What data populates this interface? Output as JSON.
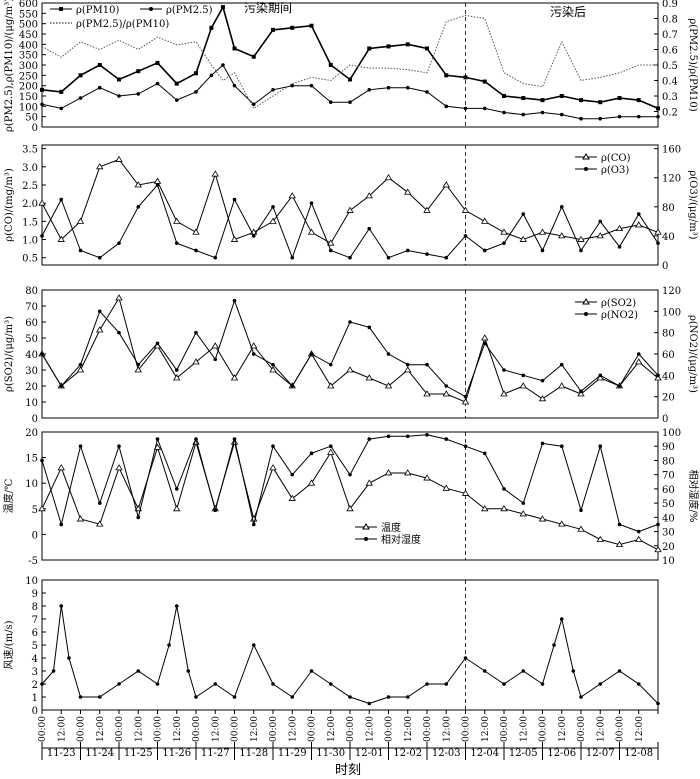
{
  "figure": {
    "x_axis": {
      "label": "时刻",
      "tick_labels": [
        "00:00",
        "12:00"
      ],
      "dates": [
        "11-23",
        "11-24",
        "11-25",
        "11-26",
        "11-27",
        "11-28",
        "11-29",
        "11-30",
        "12-01",
        "12-02",
        "12-03",
        "12-04",
        "12-05",
        "12-06",
        "12-07",
        "12-08"
      ]
    },
    "period_labels": {
      "during": "污染期间",
      "after": "污染后"
    }
  },
  "chart_data": [
    {
      "type": "line",
      "panel": 1,
      "ylabel": "ρ(PM2.5),ρ(PM10)/(μg/m³)",
      "y2label": "ρ(PM2.5)/ρ(PM10)",
      "ylim": [
        0,
        600
      ],
      "yticks": [
        0,
        50,
        100,
        150,
        200,
        250,
        300,
        350,
        400,
        450,
        500,
        550,
        600
      ],
      "y2lim": [
        0.1,
        0.9
      ],
      "y2ticks": [
        0.2,
        0.3,
        0.4,
        0.5,
        0.6,
        0.7,
        0.8,
        0.9
      ],
      "legend": [
        "ρ(PM10)",
        "ρ(PM2.5)",
        "ρ(PM2.5)/ρ(PM10)"
      ],
      "grid": false,
      "series": [
        {
          "name": "ρ(PM10)",
          "axis": "left",
          "style": "square",
          "x": [
            0,
            0.5,
            1,
            1.5,
            2,
            2.5,
            3,
            3.5,
            4,
            4.4,
            4.7,
            5,
            5.5,
            6,
            6.5,
            7,
            7.5,
            8,
            8.5,
            9,
            9.5,
            10,
            10.5,
            11,
            11.5,
            12,
            12.5,
            13,
            13.5,
            14,
            14.5,
            15,
            15.5,
            16
          ],
          "y": [
            180,
            170,
            250,
            300,
            230,
            270,
            310,
            210,
            260,
            480,
            580,
            380,
            340,
            470,
            480,
            490,
            300,
            230,
            380,
            390,
            400,
            380,
            250,
            240,
            220,
            150,
            140,
            130,
            150,
            130,
            120,
            140,
            130,
            90
          ]
        },
        {
          "name": "ρ(PM2.5)",
          "axis": "left",
          "style": "dot",
          "x": [
            0,
            0.5,
            1,
            1.5,
            2,
            2.5,
            3,
            3.5,
            4,
            4.4,
            4.7,
            5,
            5.5,
            6,
            6.5,
            7,
            7.5,
            8,
            8.5,
            9,
            9.5,
            10,
            10.5,
            11,
            11.5,
            12,
            12.5,
            13,
            13.5,
            14,
            14.5,
            15,
            15.5,
            16
          ],
          "y": [
            110,
            90,
            140,
            190,
            150,
            160,
            210,
            130,
            170,
            250,
            300,
            200,
            110,
            180,
            200,
            200,
            120,
            120,
            180,
            190,
            190,
            170,
            100,
            90,
            90,
            70,
            60,
            70,
            60,
            40,
            40,
            50,
            50,
            50
          ]
        },
        {
          "name": "ρ(PM2.5)/ρ(PM10)",
          "axis": "right",
          "style": "dotted",
          "x": [
            0,
            0.5,
            1,
            1.5,
            2,
            2.5,
            3,
            3.5,
            4,
            4.4,
            4.7,
            5,
            5.5,
            6,
            6.5,
            7,
            7.5,
            8,
            8.5,
            9,
            9.5,
            10,
            10.5,
            11,
            11.5,
            12,
            12.5,
            13,
            13.5,
            14,
            14.5,
            15,
            15.5,
            16
          ],
          "y": [
            0.62,
            0.55,
            0.65,
            0.6,
            0.66,
            0.6,
            0.68,
            0.63,
            0.65,
            0.5,
            0.4,
            0.45,
            0.22,
            0.3,
            0.38,
            0.42,
            0.4,
            0.5,
            0.48,
            0.48,
            0.47,
            0.45,
            0.78,
            0.82,
            0.8,
            0.45,
            0.38,
            0.36,
            0.65,
            0.4,
            0.42,
            0.45,
            0.5,
            0.5
          ]
        }
      ]
    },
    {
      "type": "line",
      "panel": 2,
      "ylabel": "ρ(CO)/(mg/m³)",
      "y2label": "ρ(O3)/(μg/m³)",
      "ylim": [
        0.3,
        3.6
      ],
      "yticks": [
        0.5,
        1.0,
        1.5,
        2.0,
        2.5,
        3.0,
        3.5
      ],
      "y2lim": [
        0,
        165
      ],
      "y2ticks": [
        0,
        40,
        80,
        120,
        160
      ],
      "legend": [
        "ρ(CO)",
        "ρ(O3)"
      ],
      "grid": false,
      "series": [
        {
          "name": "ρ(CO)",
          "axis": "left",
          "style": "triangle",
          "x": [
            0,
            0.5,
            1,
            1.5,
            2,
            2.5,
            3,
            3.5,
            4,
            4.5,
            5,
            5.5,
            6,
            6.5,
            7,
            7.5,
            8,
            8.5,
            9,
            9.5,
            10,
            10.5,
            11,
            11.5,
            12,
            12.5,
            13,
            13.5,
            14,
            14.5,
            15,
            15.5,
            16
          ],
          "y": [
            2.0,
            1.0,
            1.5,
            3.0,
            3.2,
            2.5,
            2.6,
            1.5,
            1.2,
            2.8,
            1.0,
            1.2,
            1.5,
            2.2,
            1.2,
            0.9,
            1.8,
            2.2,
            2.7,
            2.3,
            1.8,
            2.5,
            1.8,
            1.5,
            1.2,
            1.0,
            1.2,
            1.1,
            1.0,
            1.1,
            1.3,
            1.4,
            1.2
          ]
        },
        {
          "name": "ρ(O3)",
          "axis": "right",
          "style": "dot",
          "x": [
            0,
            0.5,
            1,
            1.5,
            2,
            2.5,
            3,
            3.5,
            4,
            4.5,
            5,
            5.5,
            6,
            6.5,
            7,
            7.5,
            8,
            8.5,
            9,
            9.5,
            10,
            10.5,
            11,
            11.5,
            12,
            12.5,
            13,
            13.5,
            14,
            14.5,
            15,
            15.5,
            16
          ],
          "y": [
            40,
            90,
            20,
            10,
            30,
            80,
            110,
            30,
            20,
            10,
            90,
            40,
            80,
            10,
            85,
            20,
            10,
            50,
            10,
            20,
            15,
            10,
            40,
            20,
            30,
            70,
            20,
            80,
            20,
            60,
            25,
            70,
            30
          ]
        }
      ]
    },
    {
      "type": "line",
      "panel": 3,
      "ylabel": "ρ(SO2)/(μg/m³)",
      "y2label": "ρ(NO2)/(μg/m³)",
      "ylim": [
        0,
        80
      ],
      "yticks": [
        0,
        10,
        20,
        30,
        40,
        50,
        60,
        70,
        80
      ],
      "y2lim": [
        0,
        120
      ],
      "y2ticks": [
        0,
        20,
        40,
        60,
        80,
        100,
        120
      ],
      "legend": [
        "ρ(SO2)",
        "ρ(NO2)"
      ],
      "grid": false,
      "series": [
        {
          "name": "ρ(SO2)",
          "axis": "left",
          "style": "triangle",
          "x": [
            0,
            0.5,
            1,
            1.5,
            2,
            2.5,
            3,
            3.5,
            4,
            4.5,
            5,
            5.5,
            6,
            6.5,
            7,
            7.5,
            8,
            8.5,
            9,
            9.5,
            10,
            10.5,
            11,
            11.5,
            12,
            12.5,
            13,
            13.5,
            14,
            14.5,
            15,
            15.5,
            16
          ],
          "y": [
            40,
            20,
            30,
            55,
            75,
            30,
            45,
            25,
            35,
            45,
            25,
            45,
            30,
            20,
            40,
            20,
            30,
            25,
            20,
            30,
            15,
            15,
            10,
            50,
            15,
            20,
            12,
            20,
            15,
            25,
            20,
            35,
            25
          ]
        },
        {
          "name": "ρ(NO2)",
          "axis": "right",
          "style": "dot",
          "x": [
            0,
            0.5,
            1,
            1.5,
            2,
            2.5,
            3,
            3.5,
            4,
            4.5,
            5,
            5.5,
            6,
            6.5,
            7,
            7.5,
            8,
            8.5,
            9,
            9.5,
            10,
            10.5,
            11,
            11.5,
            12,
            12.5,
            13,
            13.5,
            14,
            14.5,
            15,
            15.5,
            16
          ],
          "y": [
            60,
            30,
            50,
            100,
            80,
            50,
            70,
            45,
            80,
            55,
            110,
            60,
            50,
            30,
            60,
            50,
            90,
            85,
            60,
            50,
            50,
            30,
            20,
            70,
            45,
            40,
            35,
            50,
            25,
            40,
            30,
            60,
            40
          ]
        }
      ]
    },
    {
      "type": "line",
      "panel": 4,
      "ylabel": "温度/℃",
      "y2label": "相对湿度/%",
      "ylim": [
        -5,
        20
      ],
      "yticks": [
        -5,
        0,
        5,
        10,
        15,
        20
      ],
      "y2lim": [
        10,
        100
      ],
      "y2ticks": [
        10,
        20,
        30,
        40,
        50,
        60,
        70,
        80,
        90,
        100
      ],
      "legend": [
        "温度",
        "相对湿度"
      ],
      "grid": false,
      "series": [
        {
          "name": "温度",
          "axis": "left",
          "style": "triangle",
          "x": [
            0,
            0.5,
            1,
            1.5,
            2,
            2.5,
            3,
            3.5,
            4,
            4.5,
            5,
            5.5,
            6,
            6.5,
            7,
            7.5,
            8,
            8.5,
            9,
            9.5,
            10,
            10.5,
            11,
            11.5,
            12,
            12.5,
            13,
            13.5,
            14,
            14.5,
            15,
            15.5,
            16
          ],
          "y": [
            5,
            13,
            3,
            2,
            13,
            5,
            17,
            5,
            18,
            5,
            18,
            3,
            13,
            7,
            10,
            16,
            5,
            10,
            12,
            12,
            11,
            9,
            8,
            5,
            5,
            4,
            3,
            2,
            1,
            -1,
            -2,
            -1,
            -3
          ]
        },
        {
          "name": "相对湿度",
          "axis": "right",
          "style": "dot",
          "x": [
            0,
            0.5,
            1,
            1.5,
            2,
            2.5,
            3,
            3.5,
            4,
            4.5,
            5,
            5.5,
            6,
            6.5,
            7,
            7.5,
            8,
            8.5,
            9,
            9.5,
            10,
            10.5,
            11,
            11.5,
            12,
            12.5,
            13,
            13.5,
            14,
            14.5,
            15,
            15.5,
            16
          ],
          "y": [
            80,
            35,
            90,
            50,
            90,
            40,
            95,
            60,
            95,
            45,
            95,
            35,
            90,
            70,
            85,
            90,
            70,
            95,
            97,
            97,
            98,
            95,
            90,
            85,
            60,
            50,
            92,
            90,
            45,
            90,
            35,
            30,
            35
          ]
        }
      ]
    },
    {
      "type": "line",
      "panel": 5,
      "ylabel": "风速/(m/s)",
      "ylim": [
        0,
        10
      ],
      "yticks": [
        0,
        1,
        2,
        3,
        4,
        5,
        6,
        7,
        8,
        9,
        10
      ],
      "grid": false,
      "series": [
        {
          "name": "风速",
          "axis": "left",
          "style": "dot",
          "x": [
            0,
            0.3,
            0.5,
            0.7,
            1,
            1.5,
            2,
            2.5,
            3,
            3.3,
            3.5,
            3.8,
            4,
            4.5,
            5,
            5.5,
            6,
            6.5,
            7,
            7.5,
            8,
            8.5,
            9,
            9.5,
            10,
            10.5,
            11,
            11.5,
            12,
            12.5,
            13,
            13.3,
            13.5,
            13.8,
            14,
            14.5,
            15,
            15.5,
            16
          ],
          "y": [
            2,
            3,
            8,
            4,
            1,
            1,
            2,
            3,
            2,
            5,
            8,
            3,
            1,
            2,
            1,
            5,
            2,
            1,
            3,
            2,
            1,
            0.5,
            1,
            1,
            2,
            2,
            4,
            3,
            2,
            3,
            2,
            5,
            7,
            3,
            1,
            2,
            3,
            2,
            0.5
          ]
        }
      ]
    }
  ]
}
